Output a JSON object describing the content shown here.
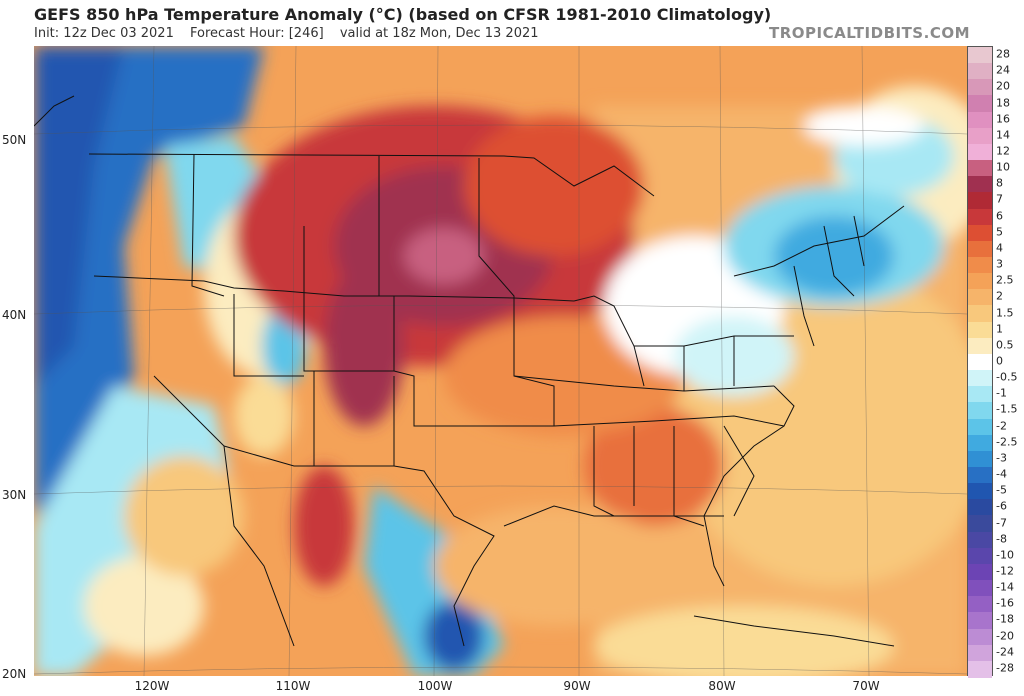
{
  "header": {
    "title": "GEFS 850 hPa Temperature Anomaly (°C) (based on CFSR 1981-2010 Climatology)",
    "init": "Init: 12z Dec 03 2021",
    "forecast_hour": "Forecast Hour: [246]",
    "valid": "valid at 18z Mon, Dec 13 2021",
    "brand": "TROPICALTIDBITS.COM"
  },
  "map": {
    "lat_labels": [
      "50N",
      "40N",
      "30N",
      "20N"
    ],
    "lon_labels": [
      "120W",
      "110W",
      "100W",
      "90W",
      "80W",
      "70W"
    ]
  },
  "colorbar": {
    "labels": [
      "28",
      "24",
      "20",
      "18",
      "16",
      "14",
      "12",
      "10",
      "8",
      "7",
      "6",
      "5",
      "4",
      "3",
      "2.5",
      "2",
      "1.5",
      "1",
      "0.5",
      "0",
      "-0.5",
      "-1",
      "-1.5",
      "-2",
      "-2.5",
      "-3",
      "-4",
      "-5",
      "-6",
      "-7",
      "-8",
      "-10",
      "-12",
      "-14",
      "-16",
      "-18",
      "-20",
      "-24",
      "-28"
    ],
    "colors": [
      "#e8c8d0",
      "#e0b0c4",
      "#d898b8",
      "#d080b0",
      "#e090c0",
      "#e8a0c8",
      "#f0b0d8",
      "#c86080",
      "#a03050",
      "#b02a35",
      "#c8383a",
      "#dd4f33",
      "#e8703c",
      "#f08c4a",
      "#f4a258",
      "#f6b46a",
      "#f8c87c",
      "#fadc96",
      "#fcecc0",
      "#ffffff",
      "#d0f4f8",
      "#a8e8f4",
      "#80d8ee",
      "#5cc4e8",
      "#40aae0",
      "#3090d4",
      "#2870c4",
      "#2056b0",
      "#2a4aa0",
      "#3a4a9c",
      "#4a48a4",
      "#5a46ac",
      "#6c44b4",
      "#8050bc",
      "#9460c4",
      "#a874cc",
      "#bc8cd4",
      "#d0a4dc",
      "#e4c0e8"
    ]
  }
}
